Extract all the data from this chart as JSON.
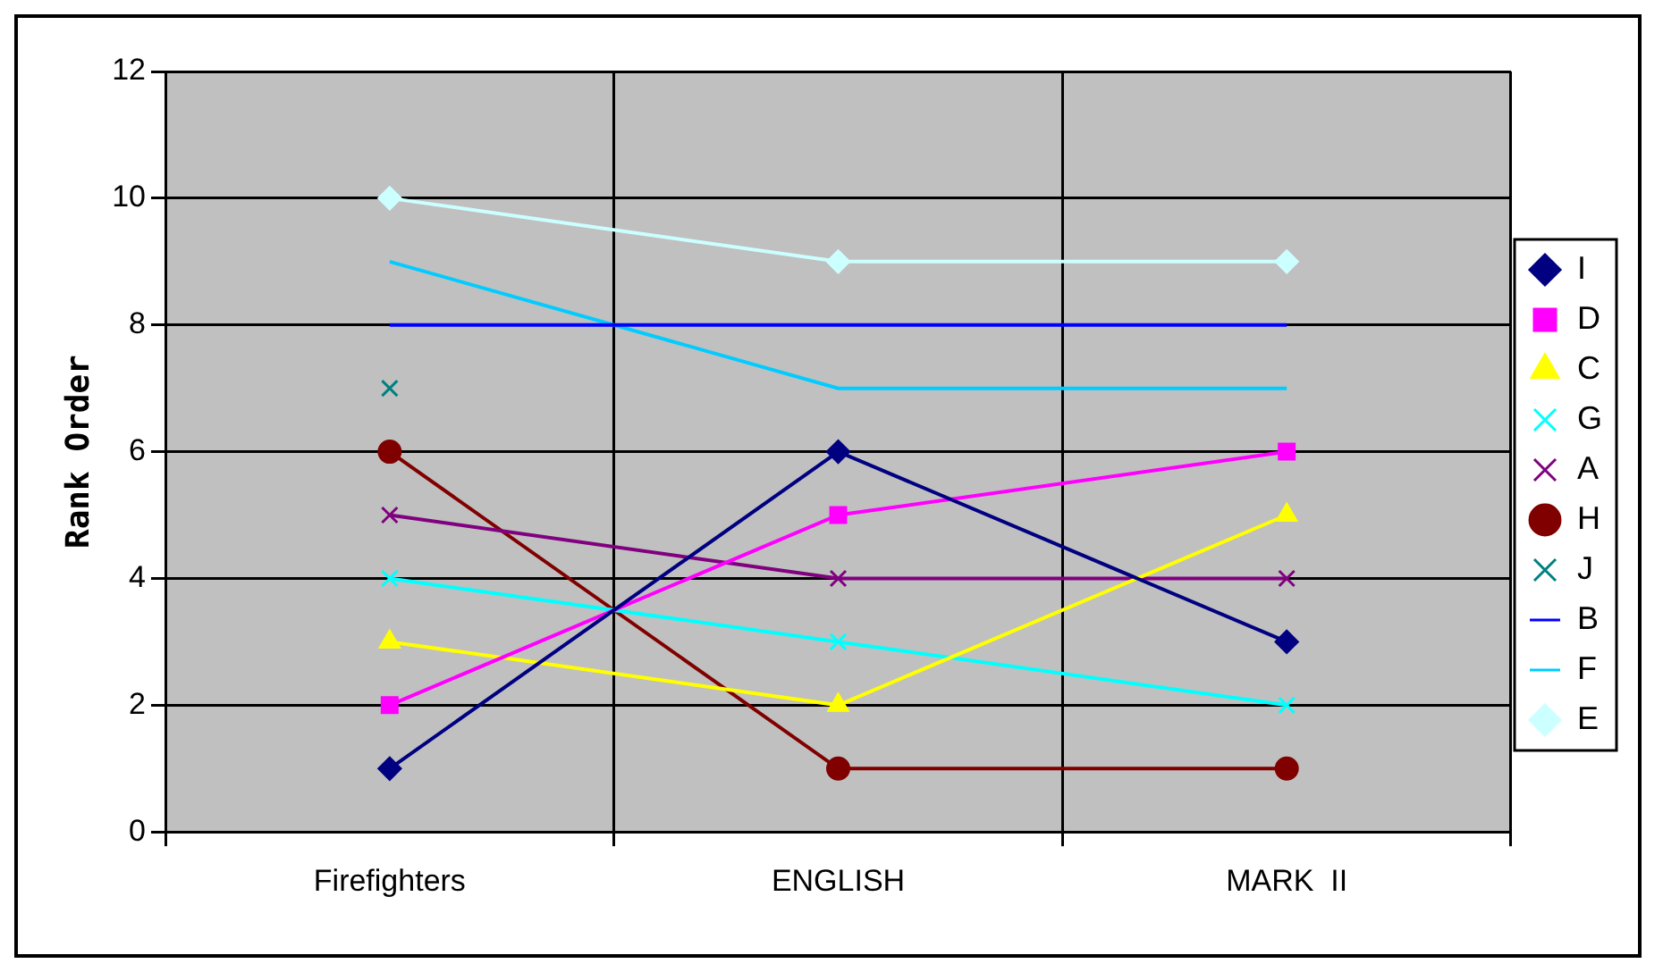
{
  "chart_data": {
    "type": "line",
    "ylabel": "Rank Order",
    "categories": [
      "Firefighters",
      "ENGLISH",
      "MARK  II"
    ],
    "ylim": [
      0,
      12
    ],
    "yticks": [
      0,
      2,
      4,
      6,
      8,
      10,
      12
    ],
    "grid": true,
    "legend": "right",
    "series": [
      {
        "name": "I",
        "color": "#000080",
        "marker": "diamond",
        "values": [
          1,
          6,
          3
        ]
      },
      {
        "name": "D",
        "color": "#ff00ff",
        "marker": "square",
        "values": [
          2,
          5,
          6
        ]
      },
      {
        "name": "C",
        "color": "#ffff00",
        "marker": "triangle",
        "values": [
          3,
          2,
          5
        ]
      },
      {
        "name": "G",
        "color": "#00ffff",
        "marker": "cross",
        "values": [
          4,
          3,
          2
        ]
      },
      {
        "name": "A",
        "color": "#800080",
        "marker": "cross",
        "values": [
          5,
          4,
          4
        ]
      },
      {
        "name": "H",
        "color": "#800000",
        "marker": "circle",
        "values": [
          6,
          1,
          1
        ]
      },
      {
        "name": "J",
        "color": "#008080",
        "marker": "cross",
        "values": [
          7,
          null,
          null
        ]
      },
      {
        "name": "B",
        "color": "#0000ff",
        "marker": "none",
        "values": [
          8,
          8,
          8
        ]
      },
      {
        "name": "F",
        "color": "#00ccff",
        "marker": "none",
        "values": [
          9,
          7,
          7
        ]
      },
      {
        "name": "E",
        "color": "#ccffff",
        "marker": "diamond",
        "values": [
          10,
          9,
          9
        ]
      }
    ]
  }
}
